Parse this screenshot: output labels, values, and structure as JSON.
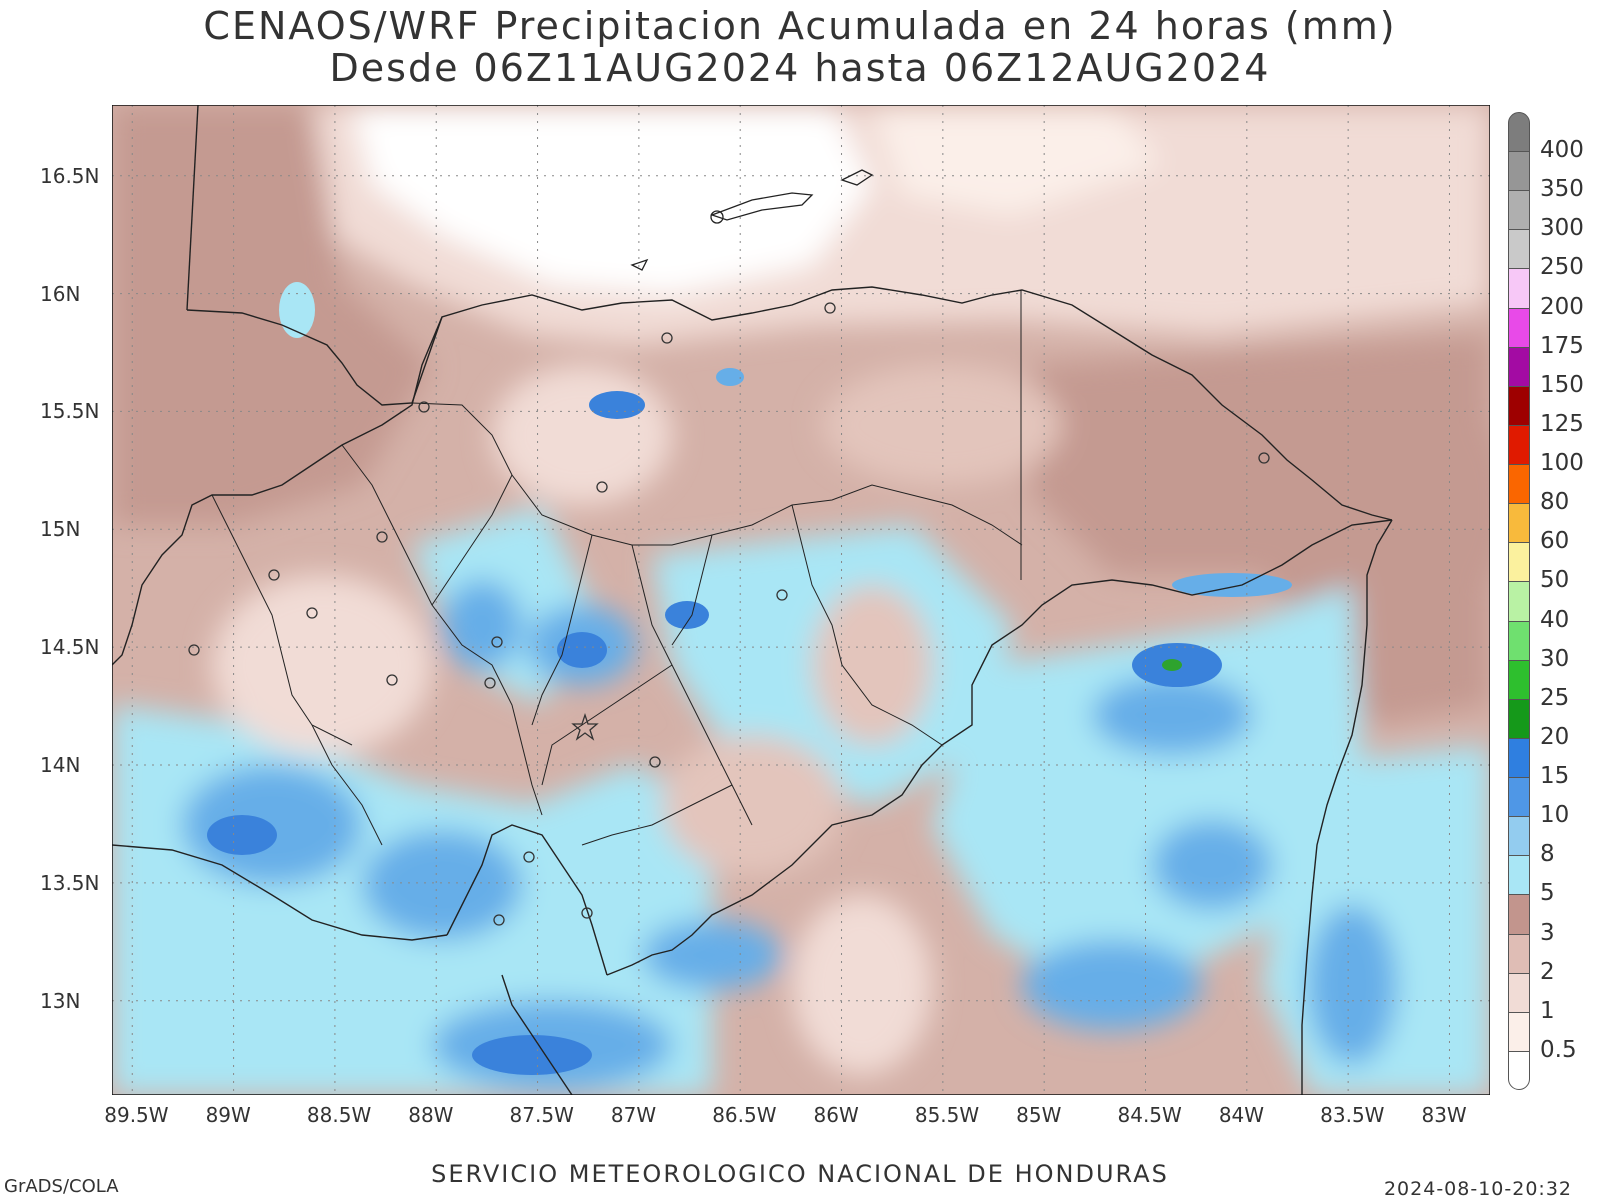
{
  "header": {
    "title_line1": "CENAOS/WRF Precipitacion Acumulada en 24 horas (mm)",
    "title_line2": "Desde 06Z11AUG2024 hasta 06Z12AUG2024"
  },
  "map": {
    "lon_range": [
      -89.6,
      -82.8
    ],
    "lat_range": [
      12.6,
      16.8
    ],
    "x_ticks": [
      "89.5W",
      "89W",
      "88.5W",
      "88W",
      "87.5W",
      "87W",
      "86.5W",
      "86W",
      "85.5W",
      "85W",
      "84.5W",
      "84W",
      "83.5W",
      "83W"
    ],
    "x_tick_values": [
      -89.5,
      -89,
      -88.5,
      -88,
      -87.5,
      -87,
      -86.5,
      -86,
      -85.5,
      -85,
      -84.5,
      -84,
      -83.5,
      -83
    ],
    "y_ticks": [
      "16.5N",
      "16N",
      "15.5N",
      "15N",
      "14.5N",
      "14N",
      "13.5N",
      "13N"
    ],
    "y_tick_values": [
      16.5,
      16,
      15.5,
      15,
      14.5,
      14,
      13.5,
      13
    ],
    "grid": "dotted",
    "colors": {
      "dry_white": "#ffffff",
      "tan_light": "#f3e6e0",
      "tan_mid": "#e3c5bc",
      "brown": "#c49a91",
      "light_blue": "#a9e6f5",
      "mid_blue": "#66aee8",
      "dark_blue": "#3a82db",
      "green": "#2ea32e"
    }
  },
  "legend": {
    "labels": [
      "400",
      "350",
      "300",
      "250",
      "200",
      "175",
      "150",
      "125",
      "100",
      "80",
      "60",
      "50",
      "40",
      "30",
      "25",
      "20",
      "15",
      "10",
      "8",
      "5",
      "3",
      "2",
      "1",
      "0.5"
    ],
    "colors": [
      "#7d7d7d",
      "#969696",
      "#afafaf",
      "#c9c9c9",
      "#f7c8f7",
      "#e84ae8",
      "#a30ba3",
      "#9e0000",
      "#e01a00",
      "#fa6600",
      "#f8ba3c",
      "#fbf19e",
      "#b9f2a4",
      "#6fe06f",
      "#2ebf2e",
      "#15991a",
      "#2f7fe0",
      "#4f97e6",
      "#93ccef",
      "#a9e6f5",
      "#c2958d",
      "#dfbdb5",
      "#f1dcd6",
      "#fbefe9"
    ]
  },
  "footer": {
    "left": "GrADS/COLA",
    "center": "SERVICIO METEOROLOGICO NACIONAL DE HONDURAS",
    "right": "2024-08-10-20:32"
  }
}
